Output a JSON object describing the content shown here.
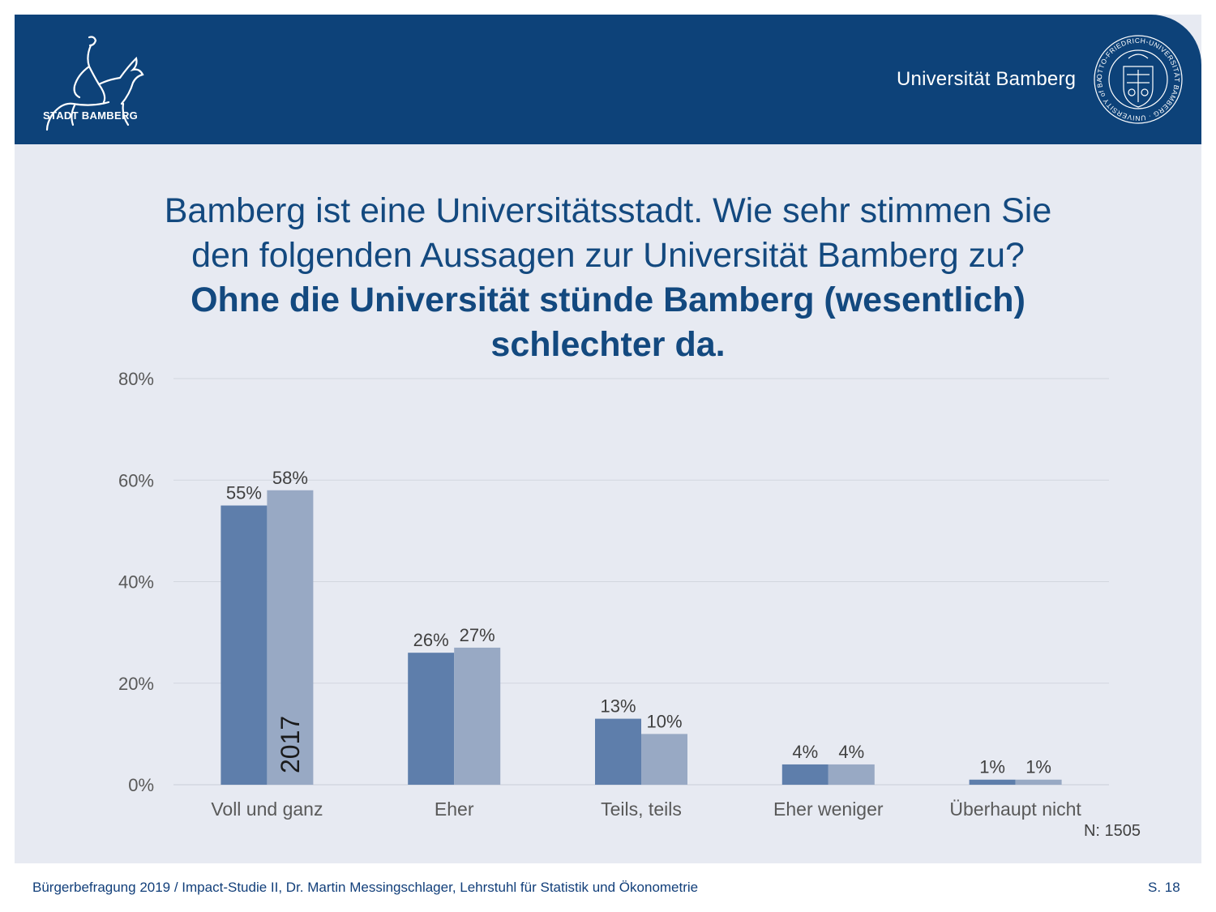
{
  "header": {
    "city_logo_text": "STADT BAMBERG",
    "university_name": "Universität Bamberg",
    "seal_text": "OTTO-FRIEDRICH-UNIVERSITÄT BAMBERG · UNIVERSITY of BAMBERG"
  },
  "title": {
    "line1": "Bamberg ist eine Universitätsstadt. Wie sehr stimmen Sie",
    "line2": "den folgenden Aussagen zur Universität Bamberg zu?",
    "line3": "Ohne die Universität stünde Bamberg (wesentlich)",
    "line4": "schlechter da."
  },
  "chart_data": {
    "type": "bar",
    "categories": [
      "Voll und ganz",
      "Eher",
      "Teils, teils",
      "Eher weniger",
      "Überhaupt nicht"
    ],
    "series": [
      {
        "values": [
          55,
          26,
          13,
          4,
          1
        ],
        "labels": [
          "55%",
          "26%",
          "13%",
          "4%",
          "1%"
        ],
        "color": "#5e7eab"
      },
      {
        "name": "2017",
        "values": [
          58,
          27,
          10,
          4,
          1
        ],
        "labels": [
          "58%",
          "27%",
          "10%",
          "4%",
          "1%"
        ],
        "color": "#98a9c4"
      }
    ],
    "yticks": [
      0,
      20,
      40,
      60,
      80
    ],
    "ytick_labels": [
      "0%",
      "20%",
      "40%",
      "60%",
      "80%"
    ],
    "ylim": [
      0,
      80
    ],
    "grid": true,
    "legend": "none",
    "annotation": "N: 1505"
  },
  "colors": {
    "brand_blue": "#0d4279",
    "title_blue": "#13497f",
    "background": "#e7eaf2",
    "gridline": "#d2d6df"
  },
  "footer": {
    "left": "Bürgerbefragung 2019 / Impact-Studie II, Dr. Martin Messingschlager, Lehrstuhl für Statistik und Ökonometrie",
    "right": "S. 18"
  }
}
